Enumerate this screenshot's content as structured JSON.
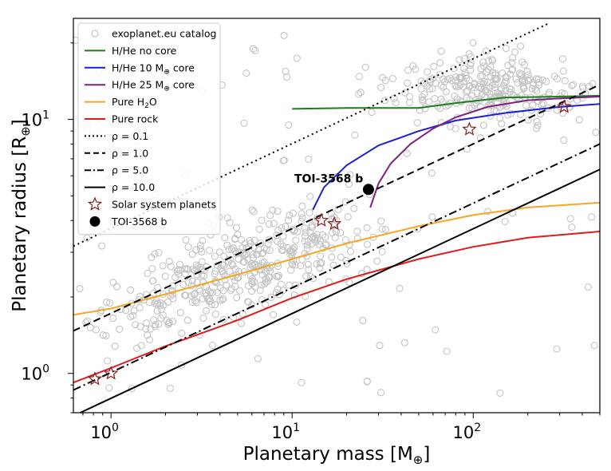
{
  "chart_data": {
    "type": "scatter",
    "xlabel_parts": [
      "Planetary mass [M",
      "⊕",
      "]"
    ],
    "ylabel_parts": [
      "Planetary radius [R",
      "⊕",
      "]"
    ],
    "x_scale": "log",
    "y_scale": "log",
    "xlim": [
      0.62,
      500
    ],
    "ylim": [
      0.7,
      25
    ],
    "x_ticks": [
      {
        "value": 1,
        "base": "10",
        "exp": "0"
      },
      {
        "value": 10,
        "base": "10",
        "exp": "1"
      },
      {
        "value": 100,
        "base": "10",
        "exp": "2"
      }
    ],
    "y_ticks": [
      {
        "value": 1,
        "label": "10",
        "exp": "0"
      },
      {
        "value": 10,
        "label": "10",
        "exp": "1"
      }
    ],
    "grid": false,
    "legend_position": "top-left",
    "legend": [
      {
        "key": "catalog",
        "label": "exoplanet.eu catalog",
        "marker": "circle-open",
        "color": "#bdbdbd"
      },
      {
        "key": "nocore",
        "label": "H/He no core",
        "line": "solid",
        "color": "#1a7f1a"
      },
      {
        "key": "core10",
        "label_pre": "H/He 10 M",
        "label_sub": "⊕",
        "label_post": " core",
        "line": "solid",
        "color": "#1f1fd6"
      },
      {
        "key": "core25",
        "label_pre": "H/He 25 M",
        "label_sub": "⊕",
        "label_post": " core",
        "line": "solid",
        "color": "#7f1f7f"
      },
      {
        "key": "water",
        "label_pre": "Pure H",
        "label_sub": "2",
        "label_post": "O",
        "line": "solid",
        "color": "#f5a623"
      },
      {
        "key": "rock",
        "label": "Pure rock",
        "line": "solid",
        "color": "#e01b1b"
      },
      {
        "key": "rho01",
        "label": "ρ = 0.1",
        "line": "dotted",
        "color": "#000000"
      },
      {
        "key": "rho1",
        "label": "ρ = 1.0",
        "line": "dashed",
        "color": "#000000"
      },
      {
        "key": "rho5",
        "label": "ρ = 5.0",
        "line": "dashdot",
        "color": "#000000"
      },
      {
        "key": "rho10",
        "label": "ρ = 10.0",
        "line": "solid",
        "color": "#000000"
      },
      {
        "key": "solar",
        "label": "Solar system planets",
        "marker": "star-open",
        "color": "#8b1a1a"
      },
      {
        "key": "toi",
        "label": "TOI-3568 b",
        "marker": "circle-filled",
        "color": "#000000"
      }
    ],
    "series": [
      {
        "key": "nocore",
        "color": "#1a7f1a",
        "dash": "",
        "x": [
          10,
          20,
          50,
          80,
          150,
          300,
          500
        ],
        "y": [
          11.0,
          11.1,
          11.1,
          11.6,
          12.2,
          12.3,
          12.4
        ]
      },
      {
        "key": "core10",
        "color": "#1f1fd6",
        "dash": "",
        "x": [
          13,
          15,
          20,
          30,
          50,
          80,
          150,
          300,
          500
        ],
        "y": [
          4.4,
          5.4,
          6.6,
          7.9,
          9.0,
          9.9,
          10.6,
          11.2,
          11.5
        ]
      },
      {
        "key": "core25",
        "color": "#7f1f7f",
        "dash": "",
        "x": [
          27,
          30,
          35,
          45,
          60,
          80,
          120,
          200,
          300,
          500
        ],
        "y": [
          4.5,
          5.6,
          6.7,
          8.0,
          9.2,
          10.2,
          11.2,
          11.9,
          12.1,
          12.3
        ]
      },
      {
        "key": "water",
        "color": "#f5a623",
        "dash": "",
        "x": [
          0.62,
          1,
          2,
          5,
          10,
          20,
          50,
          100,
          200,
          500
        ],
        "y": [
          1.7,
          1.8,
          2.05,
          2.45,
          2.82,
          3.25,
          3.8,
          4.2,
          4.5,
          4.7
        ]
      },
      {
        "key": "rock",
        "color": "#e01b1b",
        "dash": "",
        "x": [
          0.62,
          1,
          2,
          5,
          10,
          20,
          50,
          100,
          200,
          500
        ],
        "y": [
          0.92,
          1.05,
          1.28,
          1.62,
          1.98,
          2.35,
          2.82,
          3.15,
          3.42,
          3.62
        ]
      },
      {
        "key": "rho01",
        "color": "#000000",
        "dash": "2,4",
        "x": [
          0.62,
          265
        ],
        "y": [
          3.17,
          24.0
        ]
      },
      {
        "key": "rho1",
        "color": "#000000",
        "dash": "9,5",
        "x": [
          0.62,
          500
        ],
        "y": [
          1.47,
          13.7
        ]
      },
      {
        "key": "rho5",
        "color": "#000000",
        "dash": "10,4,2,4",
        "x": [
          0.62,
          500
        ],
        "y": [
          0.86,
          8.0
        ]
      },
      {
        "key": "rho10",
        "color": "#000000",
        "dash": "",
        "x": [
          0.62,
          500
        ],
        "y": [
          0.68,
          6.35
        ]
      }
    ],
    "solar_system_planets": [
      {
        "x": 0.815,
        "y": 0.95
      },
      {
        "x": 1.0,
        "y": 1.0
      },
      {
        "x": 14.5,
        "y": 4.0
      },
      {
        "x": 17.1,
        "y": 3.88
      },
      {
        "x": 95.2,
        "y": 9.14
      },
      {
        "x": 317.8,
        "y": 11.2
      }
    ],
    "target": {
      "label": "TOI-3568 b",
      "x": 26.4,
      "y": 5.3
    },
    "catalog_points_note": "exoplanet.eu catalog shown as many grey open circles spread across the plane"
  }
}
